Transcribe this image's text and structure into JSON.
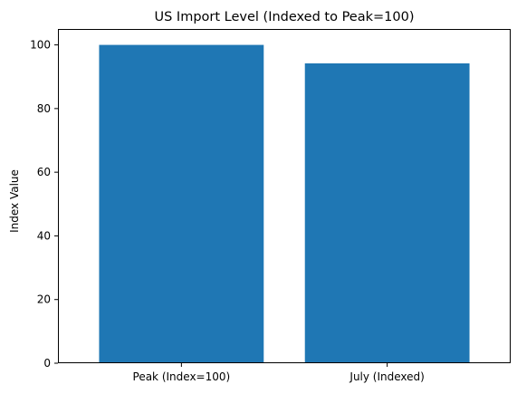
{
  "chart_data": {
    "type": "bar",
    "title": "US Import Level (Indexed to Peak=100)",
    "xlabel": "",
    "ylabel": "Index Value",
    "categories": [
      "Peak (Index=100)",
      "July (Indexed)"
    ],
    "values": [
      100,
      94.2
    ],
    "ylim": [
      0,
      105
    ],
    "yticks": [
      0,
      20,
      40,
      60,
      80,
      100
    ],
    "bar_color": "#1f77b4",
    "grid": false,
    "legend": "none"
  }
}
